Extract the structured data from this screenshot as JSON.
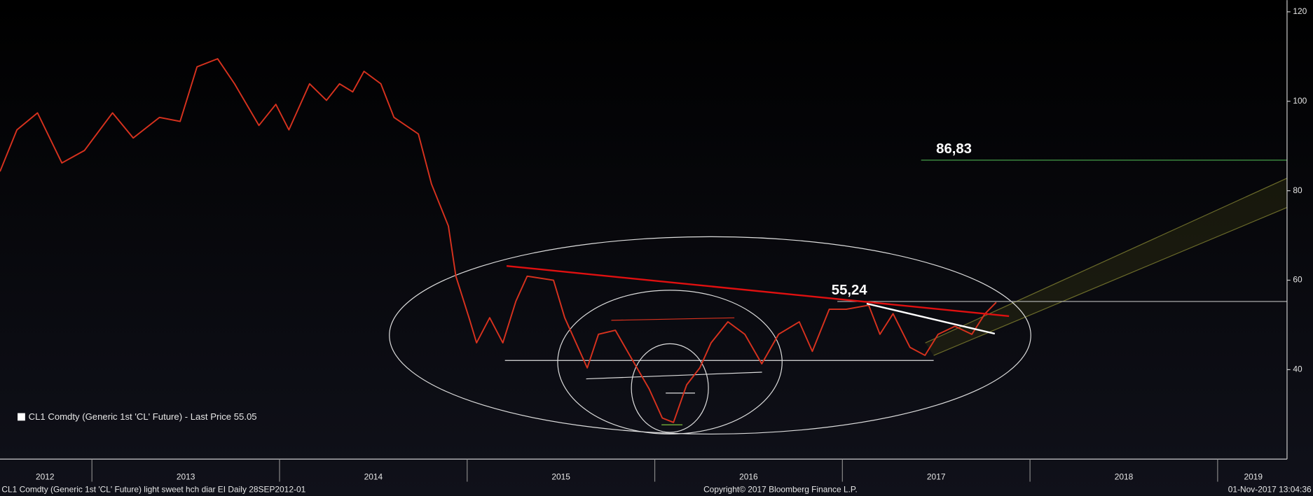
{
  "chart_data": {
    "type": "line",
    "series": [
      {
        "name": "CL1 Comdty (Generic 1st 'CL' Future) - Last Price 55.05",
        "color": "#d8321e",
        "x": [
          2012.51,
          2012.6,
          2012.71,
          2012.84,
          2012.96,
          2013.11,
          2013.22,
          2013.36,
          2013.47,
          2013.56,
          2013.67,
          2013.76,
          2013.89,
          2013.98,
          2014.05,
          2014.16,
          2014.25,
          2014.32,
          2014.39,
          2014.45,
          2014.54,
          2014.61,
          2014.74,
          2014.81,
          2014.9,
          2014.94,
          2015.01,
          2015.05,
          2015.12,
          2015.19,
          2015.26,
          2015.32,
          2015.46,
          2015.52,
          2015.64,
          2015.7,
          2015.79,
          2015.88,
          2015.97,
          2016.04,
          2016.1,
          2016.17,
          2016.24,
          2016.3,
          2016.39,
          2016.48,
          2016.57,
          2016.66,
          2016.77,
          2016.84,
          2016.93,
          2017.02,
          2017.14,
          2017.2,
          2017.27,
          2017.36,
          2017.44,
          2017.51,
          2017.6,
          2017.69,
          2017.76,
          2017.82
        ],
        "values": [
          84.3,
          93.6,
          97.4,
          86.2,
          89,
          97.4,
          91.8,
          96.4,
          95.5,
          107.7,
          109.5,
          103.9,
          94.6,
          99.3,
          93.6,
          103.9,
          100.2,
          103.9,
          102.1,
          106.7,
          103.9,
          96.4,
          92.7,
          81.5,
          72.1,
          60.9,
          51.6,
          46,
          51.6,
          46,
          55.3,
          60.9,
          60,
          51.6,
          40.4,
          47.9,
          48.8,
          42.2,
          35.7,
          29.2,
          28.2,
          36.6,
          40.4,
          46,
          50.7,
          47.9,
          41.3,
          47.9,
          50.7,
          44.1,
          53.5,
          53.5,
          54.4,
          47.9,
          52.5,
          45,
          43.2,
          47.9,
          49.7,
          47.9,
          52.5,
          55.05
        ]
      }
    ],
    "levels": [
      {
        "value": 86.83,
        "label": "86,83",
        "color": "#4caf50"
      },
      {
        "value": 55.24,
        "label": "55,24",
        "color": "#bbbbbb"
      }
    ],
    "xlim": [
      2012.51,
      2019.37
    ],
    "ylim": [
      20,
      120
    ],
    "yticks": [
      40,
      60,
      80,
      100,
      120
    ],
    "xticks": [
      {
        "value": 2012.75,
        "label": "2012"
      },
      {
        "value": 2013.5,
        "label": "2013"
      },
      {
        "value": 2014.5,
        "label": "2014"
      },
      {
        "value": 2015.5,
        "label": "2015"
      },
      {
        "value": 2016.5,
        "label": "2016"
      },
      {
        "value": 2017.5,
        "label": "2017"
      },
      {
        "value": 2018.5,
        "label": "2018"
      },
      {
        "value": 2019.19,
        "label": "2019"
      }
    ],
    "xminor": [
      2013,
      2014,
      2015,
      2016,
      2017,
      2018,
      2019
    ],
    "footer": {
      "left": "CL1 Comdty (Generic 1st 'CL' Future) light sweet hch diar EI  Daily 28SEP2012-01",
      "center": "Copyright© 2017 Bloomberg Finance L.P.",
      "right": "01-Nov-2017 13:04:36"
    }
  }
}
